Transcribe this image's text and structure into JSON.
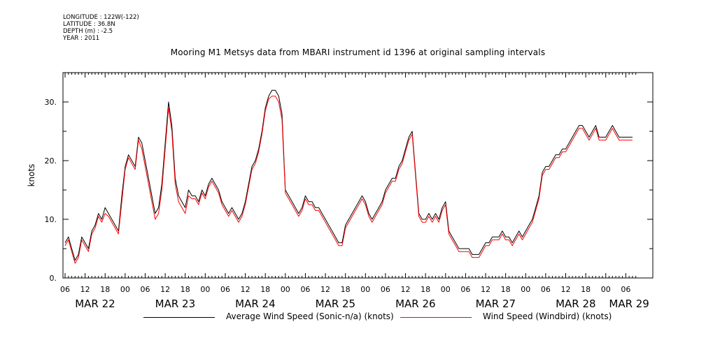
{
  "header": {
    "longitude": "LONGITUDE : 122W(-122)",
    "latitude": "LATITUDE : 36.8N",
    "depth": "DEPTH (m) : -2.5",
    "year": "YEAR : 2011"
  },
  "colors": {
    "series1": "#000000",
    "series2": "#ff0000",
    "axis": "#000000"
  },
  "chart_data": {
    "type": "line",
    "title": "Mooring M1 Metsys data from MBARI instrument id 1396 at original sampling intervals",
    "ylabel": "knots",
    "xlabel": "",
    "xlim": [
      0,
      171
    ],
    "ylim": [
      0,
      35
    ],
    "y_ticks": [
      0,
      10,
      20,
      30
    ],
    "y_tick_labels": [
      "0.",
      "10.",
      "20.",
      "30."
    ],
    "x_hour_ticks": [
      0,
      6,
      12,
      18,
      24,
      30,
      36,
      42,
      48,
      54,
      60,
      66,
      72,
      78,
      84,
      90,
      96,
      102,
      108,
      114,
      120,
      126,
      132,
      138,
      144,
      150,
      156,
      162,
      168
    ],
    "x_hour_tick_labels": [
      "06",
      "12",
      "18",
      "00",
      "06",
      "12",
      "18",
      "00",
      "06",
      "12",
      "18",
      "00",
      "06",
      "12",
      "18",
      "00",
      "06",
      "12",
      "18",
      "00",
      "06",
      "12",
      "18",
      "00",
      "06",
      "12",
      "18",
      "00",
      "06"
    ],
    "x_day_labels": [
      {
        "x": 9,
        "label": "MAR 22"
      },
      {
        "x": 33,
        "label": "MAR 23"
      },
      {
        "x": 57,
        "label": "MAR 24"
      },
      {
        "x": 81,
        "label": "MAR 25"
      },
      {
        "x": 105,
        "label": "MAR 26"
      },
      {
        "x": 129,
        "label": "MAR 27"
      },
      {
        "x": 153,
        "label": "MAR 28"
      },
      {
        "x": 169,
        "label": "MAR 29"
      }
    ],
    "grid": false,
    "legend_position": "bottom",
    "x_unit": "hours after 2011-03-22 06:00",
    "series": [
      {
        "name": "Average Wind Speed (Sonic-n/a) (knots)",
        "color": "#000000",
        "x": [
          0,
          1,
          2,
          3,
          4,
          5,
          6,
          7,
          8,
          9,
          10,
          11,
          12,
          13,
          14,
          15,
          16,
          17,
          18,
          19,
          20,
          21,
          22,
          23,
          24,
          25,
          26,
          27,
          28,
          29,
          30,
          31,
          32,
          33,
          34,
          35,
          36,
          37,
          38,
          39,
          40,
          41,
          42,
          43,
          44,
          45,
          46,
          47,
          48,
          49,
          50,
          51,
          52,
          53,
          54,
          55,
          56,
          57,
          58,
          59,
          60,
          61,
          62,
          63,
          64,
          65,
          66,
          67,
          68,
          69,
          70,
          71,
          72,
          73,
          74,
          75,
          76,
          77,
          78,
          79,
          80,
          81,
          82,
          83,
          84,
          85,
          86,
          87,
          88,
          89,
          90,
          91,
          92,
          93,
          94,
          95,
          96,
          97,
          98,
          99,
          100,
          101,
          102,
          103,
          104,
          105,
          106,
          107,
          108,
          109,
          110,
          111,
          112,
          113,
          114,
          115,
          116,
          117,
          118,
          119,
          120,
          121,
          122,
          123,
          124,
          125,
          126,
          127,
          128,
          129,
          130,
          131,
          132,
          133,
          134,
          135,
          136,
          137,
          138,
          139,
          140,
          141,
          142,
          143,
          144,
          145,
          146,
          147,
          148,
          149,
          150,
          151,
          152,
          153,
          154,
          155,
          156,
          157,
          158,
          159,
          160,
          161,
          162,
          163,
          164,
          165,
          166,
          167,
          168,
          169,
          170
        ],
        "values": [
          6,
          7,
          5,
          3,
          4,
          7,
          6,
          5,
          8,
          9,
          11,
          10,
          12,
          11,
          10,
          9,
          8,
          14,
          19,
          21,
          20,
          19,
          24,
          23,
          20,
          17,
          14,
          11,
          12,
          16,
          23,
          30,
          26,
          17,
          14,
          13,
          12,
          15,
          14,
          14,
          13,
          15,
          14,
          16,
          17,
          16,
          15,
          13,
          12,
          11,
          12,
          11,
          10,
          11,
          13,
          16,
          19,
          20,
          22,
          25,
          29,
          31,
          32,
          32,
          31,
          28,
          15,
          14,
          13,
          12,
          11,
          12,
          14,
          13,
          13,
          12,
          12,
          11,
          10,
          9,
          8,
          7,
          6,
          6,
          9,
          10,
          11,
          12,
          13,
          14,
          13,
          11,
          10,
          11,
          12,
          13,
          15,
          16,
          17,
          17,
          19,
          20,
          22,
          24,
          25,
          18,
          11,
          10,
          10,
          11,
          10,
          11,
          10,
          12,
          13,
          8,
          7,
          6,
          5,
          5,
          5,
          5,
          4,
          4,
          4,
          5,
          6,
          6,
          7,
          7,
          7,
          8,
          7,
          7,
          6,
          7,
          8,
          7,
          8,
          9,
          10,
          12,
          14,
          18,
          19,
          19,
          20,
          21,
          21,
          22,
          22,
          23,
          24,
          25,
          26,
          26,
          25,
          24,
          25,
          26,
          24,
          24,
          24,
          25,
          26,
          25,
          24,
          24,
          24,
          24,
          24
        ]
      },
      {
        "name": "Wind Speed (Windbird) (knots)",
        "color": "#ff0000",
        "x": [
          0,
          1,
          2,
          3,
          4,
          5,
          6,
          7,
          8,
          9,
          10,
          11,
          12,
          13,
          14,
          15,
          16,
          17,
          18,
          19,
          20,
          21,
          22,
          23,
          24,
          25,
          26,
          27,
          28,
          29,
          30,
          31,
          32,
          33,
          34,
          35,
          36,
          37,
          38,
          39,
          40,
          41,
          42,
          43,
          44,
          45,
          46,
          47,
          48,
          49,
          50,
          51,
          52,
          53,
          54,
          55,
          56,
          57,
          58,
          59,
          60,
          61,
          62,
          63,
          64,
          65,
          66,
          67,
          68,
          69,
          70,
          71,
          72,
          73,
          74,
          75,
          76,
          77,
          78,
          79,
          80,
          81,
          82,
          83,
          84,
          85,
          86,
          87,
          88,
          89,
          90,
          91,
          92,
          93,
          94,
          95,
          96,
          97,
          98,
          99,
          100,
          101,
          102,
          103,
          104,
          105,
          106,
          107,
          108,
          109,
          110,
          111,
          112,
          113,
          114,
          115,
          116,
          117,
          118,
          119,
          120,
          121,
          122,
          123,
          124,
          125,
          126,
          127,
          128,
          129,
          130,
          131,
          132,
          133,
          134,
          135,
          136,
          137,
          138,
          139,
          140,
          141,
          142,
          143,
          144,
          145,
          146,
          147,
          148,
          149,
          150,
          151,
          152,
          153,
          154,
          155,
          156,
          157,
          158,
          159,
          160,
          161,
          162,
          163,
          164,
          165,
          166,
          167,
          168,
          169,
          170
        ],
        "values": [
          5.5,
          6.5,
          4.5,
          2.5,
          3.5,
          6.5,
          5.5,
          4.5,
          7.5,
          8.5,
          10.5,
          9.5,
          11,
          10.5,
          9.5,
          8.5,
          7.5,
          13,
          18.5,
          20.5,
          19.5,
          18.5,
          23.5,
          22,
          19,
          16,
          13,
          10,
          11,
          15,
          22,
          29,
          25,
          16,
          13,
          12,
          11,
          14,
          13.5,
          13.5,
          12.5,
          14.5,
          13.5,
          15.5,
          16.5,
          15.5,
          14.5,
          12.5,
          11.5,
          10.5,
          11.5,
          10.5,
          9.5,
          10.5,
          12.5,
          15.5,
          18.5,
          19.5,
          21.5,
          24.5,
          28.5,
          30.5,
          31,
          31,
          30,
          27,
          14.5,
          13.5,
          12.5,
          11.5,
          10.5,
          11.5,
          13.5,
          12.5,
          12.5,
          11.5,
          11.5,
          10.5,
          9.5,
          8.5,
          7.5,
          6.5,
          5.5,
          5.5,
          8.5,
          9.5,
          10.5,
          11.5,
          12.5,
          13.5,
          12.5,
          10.5,
          9.5,
          10.5,
          11.5,
          12.5,
          14.5,
          15.5,
          16.5,
          16.5,
          18.5,
          19.5,
          21.5,
          23.5,
          24.5,
          17.5,
          10.5,
          9.5,
          9.5,
          10.5,
          9.5,
          10.5,
          9.5,
          11.5,
          12.5,
          7.5,
          6.5,
          5.5,
          4.5,
          4.5,
          4.5,
          4.5,
          3.5,
          3.5,
          3.5,
          4.5,
          5.5,
          5.5,
          6.5,
          6.5,
          6.5,
          7.5,
          6.5,
          6.5,
          5.5,
          6.5,
          7.5,
          6.5,
          7.5,
          8.5,
          9.5,
          11.5,
          13.5,
          17.5,
          18.5,
          18.5,
          19.5,
          20.5,
          20.5,
          21.5,
          21.5,
          22.5,
          23.5,
          24.5,
          25.5,
          25.5,
          24.5,
          23.5,
          24.5,
          25.5,
          23.5,
          23.5,
          23.5,
          24.5,
          25.5,
          24.5,
          23.5,
          23.5,
          23.5,
          23.5,
          23.5
        ]
      }
    ]
  }
}
